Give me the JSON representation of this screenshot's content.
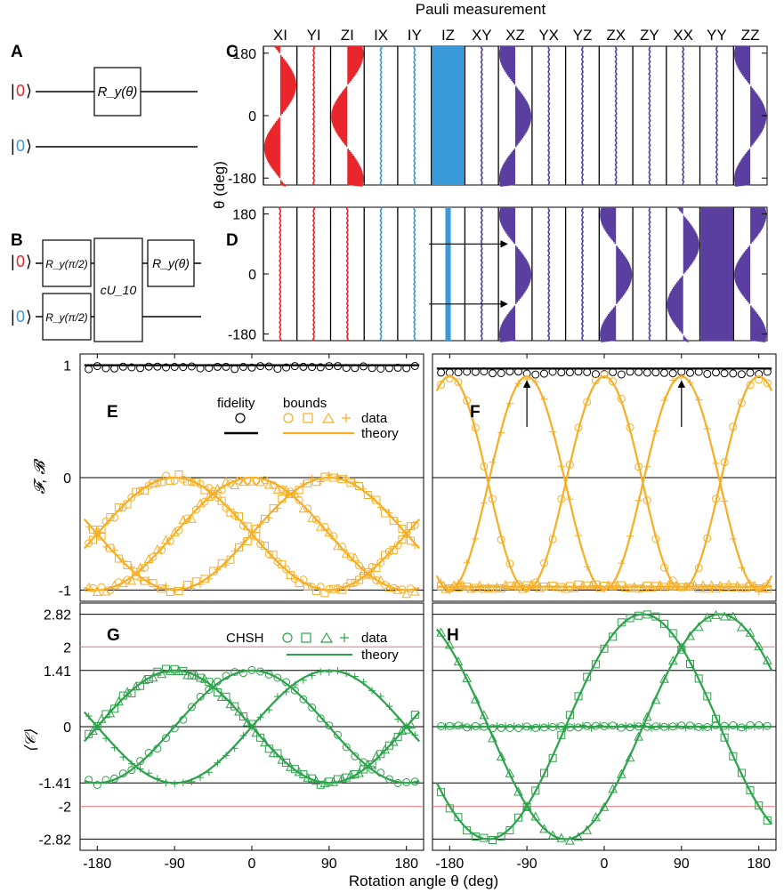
{
  "figure": {
    "top_title": "Pauli measurement",
    "xlabel": "Rotation angle θ (deg)",
    "x_ticks": [
      "-180",
      "-90",
      "0",
      "90",
      "180"
    ],
    "pauli_labels": [
      "XI",
      "YI",
      "ZI",
      "IX",
      "IY",
      "IZ",
      "XY",
      "XZ",
      "YX",
      "YZ",
      "ZX",
      "ZY",
      "XX",
      "YY",
      "ZZ"
    ],
    "panel_labels": {
      "A": "A",
      "B": "B",
      "C": "C",
      "D": "D",
      "E": "E",
      "F": "F",
      "G": "G",
      "H": "H"
    },
    "cd_ylabel": "θ (deg)",
    "cd_ticks": [
      "180",
      "0",
      "-180"
    ],
    "ef_ylabel": "𝓕, 𝓑",
    "ef_ticks": [
      "1",
      "0",
      "-1"
    ],
    "gh_ylabel": "⟨𝒞⟩",
    "gh_ticks": [
      "2.82",
      "2",
      "1.41",
      "0",
      "-1.41",
      "-2",
      "-2.82"
    ],
    "colors": {
      "red": "#e8262b",
      "blue": "#3a9ad9",
      "purple": "#5a3fa0",
      "orange": "#f7ae23",
      "green": "#2ca24a",
      "pink": "#e8737a",
      "black": "#000000"
    }
  },
  "circuits": {
    "A": {
      "ket0_q1": "0",
      "ket0_q2": "0",
      "gate": "R_y(θ)"
    },
    "B": {
      "ket0_q1": "0",
      "ket0_q2": "0",
      "gate_pi2_q1": "R_y(π/2)",
      "gate_pi2_q2": "R_y(π/2)",
      "cgate": "cU_10",
      "gate_theta": "R_y(θ)"
    }
  },
  "legends": {
    "E": {
      "fidelity": "fidelity",
      "bounds": "bounds",
      "data": "data",
      "theory": "theory"
    },
    "G": {
      "chsh": "CHSH",
      "data": "data",
      "theory": "theory"
    }
  },
  "chart_data": [
    {
      "type": "heatmap",
      "panel": "C",
      "ylabel": "θ (deg)",
      "ylim": [
        -200,
        200
      ],
      "columns": [
        "XI",
        "YI",
        "ZI",
        "IX",
        "IY",
        "IZ",
        "XY",
        "XZ",
        "YX",
        "YZ",
        "ZX",
        "ZY",
        "XX",
        "YY",
        "ZZ"
      ],
      "profiles": {
        "XI": "+sin",
        "ZI": "-cos",
        "IZ": "const-full",
        "XZ": "+cos",
        "ZZ": "+cos",
        "others": "zero"
      }
    },
    {
      "type": "heatmap",
      "panel": "D",
      "ylabel": "θ (deg)",
      "ylim": [
        -200,
        200
      ],
      "columns": [
        "XI",
        "YI",
        "ZI",
        "IX",
        "IY",
        "IZ",
        "XY",
        "XZ",
        "YX",
        "YZ",
        "ZX",
        "ZY",
        "XX",
        "YY",
        "ZZ"
      ],
      "profiles": {
        "IZ": "const-thin",
        "XZ": "+cos",
        "ZX": "+cos",
        "XX": "+sin",
        "YY": "const-full",
        "ZZ": "-cos",
        "others": "zero"
      }
    },
    {
      "type": "scatter",
      "panel": "E",
      "ylim": [
        -1.1,
        1.1
      ],
      "x": "theta -200..200 deg",
      "series": [
        {
          "name": "fidelity",
          "theory": "1"
        },
        {
          "name": "bounds",
          "theory": "-(1+cos(θ-90))/2, -(1+cos(θ+90))/2, -(1-cos θ)/2"
        }
      ]
    },
    {
      "type": "scatter",
      "panel": "F",
      "ylim": [
        -1.1,
        1.1
      ],
      "x": "theta -200..200 deg",
      "series": [
        {
          "name": "fidelity",
          "theory": "0.95"
        },
        {
          "name": "bounds",
          "theory": "-1+1.9*sin²θ, -1+1.9*cos²θ, -1"
        }
      ]
    },
    {
      "type": "scatter",
      "panel": "G",
      "ylim": [
        -3.1,
        3.1
      ],
      "x": "theta -200..200 deg",
      "series": [
        {
          "name": "CHSH",
          "theory": "1.41·cos θ, 1.41·cos(θ-90), 1.41·cos(θ+90)"
        }
      ]
    },
    {
      "type": "scatter",
      "panel": "H",
      "ylim": [
        -3.1,
        3.1
      ],
      "x": "theta -200..200 deg",
      "series": [
        {
          "name": "CHSH",
          "theory": "2.82·cos(θ-45), 2.82·cos(θ-135), 0"
        }
      ]
    }
  ]
}
